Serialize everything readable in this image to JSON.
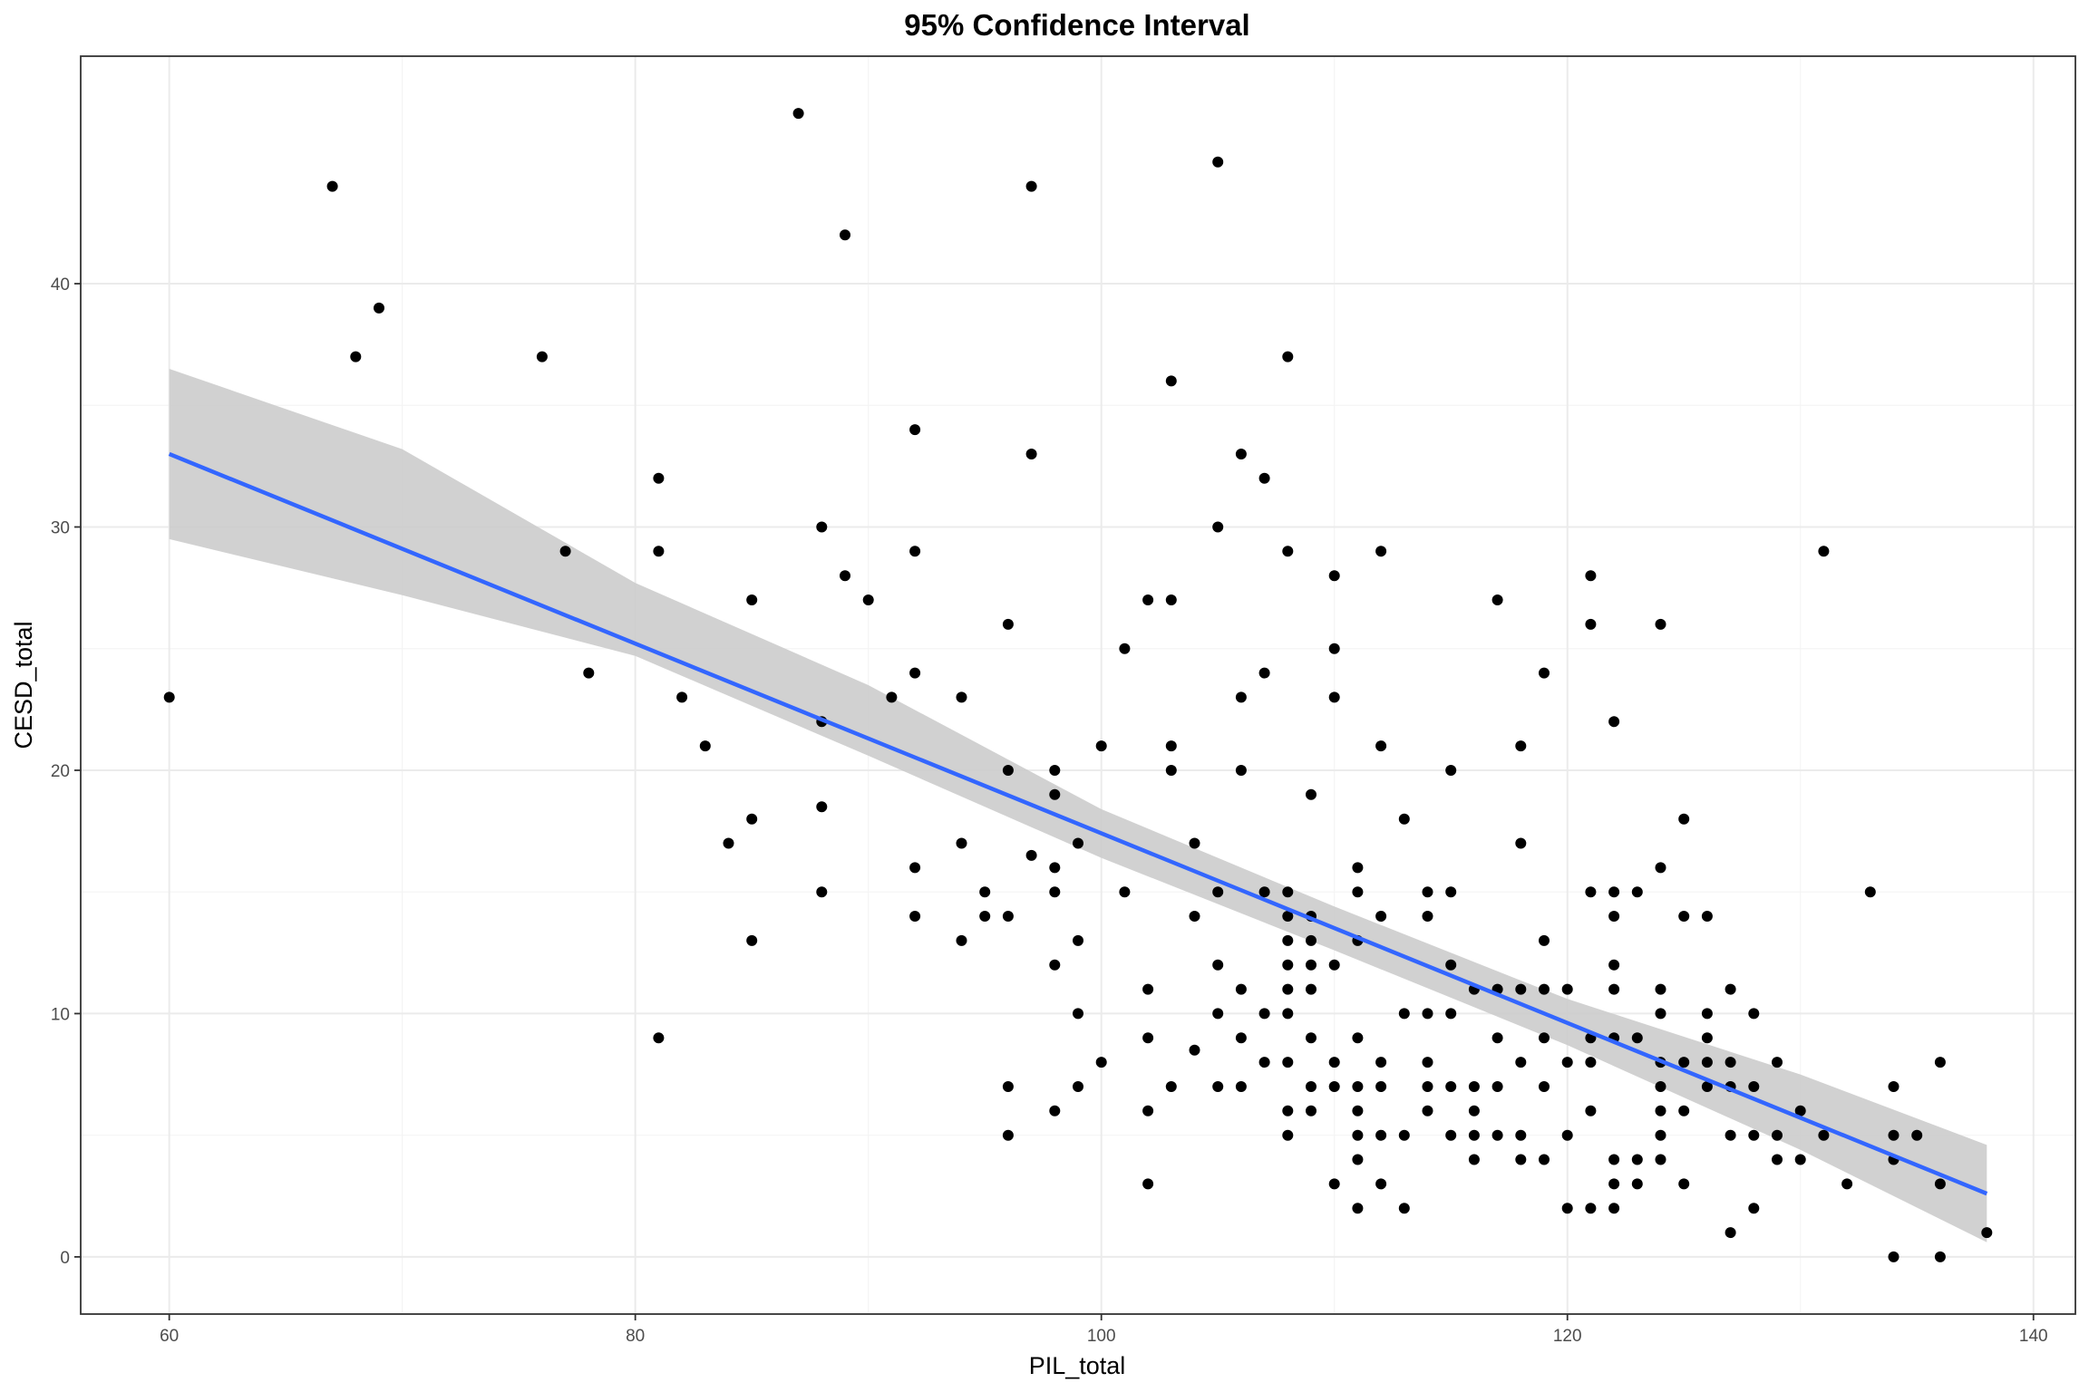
{
  "chart_data": {
    "type": "scatter",
    "title": "95% Confidence Interval",
    "xlabel": "PIL_total",
    "ylabel": "CESD_total",
    "xlim": [
      56.2,
      141.8
    ],
    "ylim": [
      -2.35,
      49.35
    ],
    "x_ticks": [
      60,
      80,
      100,
      120,
      140
    ],
    "y_ticks": [
      0,
      10,
      20,
      30,
      40
    ],
    "grid": true,
    "colors": {
      "points": "#000000",
      "line": "#3366ff",
      "ribbon": "#cccccc",
      "panel_border": "#333333"
    },
    "points": [
      [
        60,
        23
      ],
      [
        67,
        44
      ],
      [
        68,
        37
      ],
      [
        69,
        39
      ],
      [
        76,
        37
      ],
      [
        77,
        29
      ],
      [
        78,
        24
      ],
      [
        81,
        32
      ],
      [
        81,
        29
      ],
      [
        81,
        9
      ],
      [
        82,
        23
      ],
      [
        83,
        21
      ],
      [
        84,
        17
      ],
      [
        85,
        27
      ],
      [
        85,
        18
      ],
      [
        85,
        13
      ],
      [
        87,
        47
      ],
      [
        88,
        30
      ],
      [
        88,
        22
      ],
      [
        88,
        18.5
      ],
      [
        88,
        15
      ],
      [
        89,
        42
      ],
      [
        89,
        28
      ],
      [
        90,
        27
      ],
      [
        91,
        23
      ],
      [
        92,
        34
      ],
      [
        92,
        29
      ],
      [
        92,
        24
      ],
      [
        92,
        16
      ],
      [
        92,
        14
      ],
      [
        94,
        23
      ],
      [
        94,
        17
      ],
      [
        94,
        13
      ],
      [
        95,
        15
      ],
      [
        95,
        14
      ],
      [
        96,
        26
      ],
      [
        96,
        20
      ],
      [
        96,
        14
      ],
      [
        96,
        7
      ],
      [
        96,
        5
      ],
      [
        97,
        44
      ],
      [
        97,
        33
      ],
      [
        97,
        16.5
      ],
      [
        98,
        20
      ],
      [
        98,
        19
      ],
      [
        98,
        16
      ],
      [
        98,
        15
      ],
      [
        98,
        12
      ],
      [
        98,
        6
      ],
      [
        99,
        17
      ],
      [
        99,
        13
      ],
      [
        99,
        10
      ],
      [
        99,
        7
      ],
      [
        100,
        21
      ],
      [
        100,
        8
      ],
      [
        101,
        25
      ],
      [
        101,
        15
      ],
      [
        102,
        27
      ],
      [
        102,
        11
      ],
      [
        102,
        9
      ],
      [
        102,
        6
      ],
      [
        102,
        3
      ],
      [
        103,
        36
      ],
      [
        103,
        27
      ],
      [
        103,
        21
      ],
      [
        103,
        20
      ],
      [
        103,
        7
      ],
      [
        104,
        17
      ],
      [
        104,
        14
      ],
      [
        104,
        8.5
      ],
      [
        105,
        45
      ],
      [
        105,
        30
      ],
      [
        105,
        15
      ],
      [
        105,
        12
      ],
      [
        105,
        10
      ],
      [
        105,
        7
      ],
      [
        106,
        33
      ],
      [
        106,
        23
      ],
      [
        106,
        20
      ],
      [
        106,
        11
      ],
      [
        106,
        9
      ],
      [
        106,
        7
      ],
      [
        107,
        32
      ],
      [
        107,
        24
      ],
      [
        107,
        15
      ],
      [
        107,
        10
      ],
      [
        107,
        8
      ],
      [
        108,
        37
      ],
      [
        108,
        29
      ],
      [
        108,
        15
      ],
      [
        108,
        14
      ],
      [
        108,
        13
      ],
      [
        108,
        12
      ],
      [
        108,
        11
      ],
      [
        108,
        10
      ],
      [
        108,
        8
      ],
      [
        108,
        6
      ],
      [
        108,
        5
      ],
      [
        109,
        19
      ],
      [
        109,
        14
      ],
      [
        109,
        13
      ],
      [
        109,
        12
      ],
      [
        109,
        11
      ],
      [
        109,
        9
      ],
      [
        109,
        7
      ],
      [
        109,
        6
      ],
      [
        110,
        28
      ],
      [
        110,
        25
      ],
      [
        110,
        23
      ],
      [
        110,
        12
      ],
      [
        110,
        8
      ],
      [
        110,
        7
      ],
      [
        110,
        3
      ],
      [
        111,
        16
      ],
      [
        111,
        15
      ],
      [
        111,
        13
      ],
      [
        111,
        9
      ],
      [
        111,
        7
      ],
      [
        111,
        6
      ],
      [
        111,
        5
      ],
      [
        111,
        4
      ],
      [
        111,
        2
      ],
      [
        112,
        29
      ],
      [
        112,
        21
      ],
      [
        112,
        14
      ],
      [
        112,
        8
      ],
      [
        112,
        7
      ],
      [
        112,
        5
      ],
      [
        112,
        3
      ],
      [
        113,
        18
      ],
      [
        113,
        10
      ],
      [
        113,
        5
      ],
      [
        113,
        2
      ],
      [
        114,
        15
      ],
      [
        114,
        14
      ],
      [
        114,
        10
      ],
      [
        114,
        8
      ],
      [
        114,
        7
      ],
      [
        114,
        6
      ],
      [
        115,
        20
      ],
      [
        115,
        15
      ],
      [
        115,
        12
      ],
      [
        115,
        10
      ],
      [
        115,
        7
      ],
      [
        115,
        5
      ],
      [
        116,
        11
      ],
      [
        116,
        7
      ],
      [
        116,
        6
      ],
      [
        116,
        5
      ],
      [
        116,
        4
      ],
      [
        117,
        27
      ],
      [
        117,
        11
      ],
      [
        117,
        9
      ],
      [
        117,
        7
      ],
      [
        117,
        5
      ],
      [
        118,
        21
      ],
      [
        118,
        17
      ],
      [
        118,
        11
      ],
      [
        118,
        8
      ],
      [
        118,
        5
      ],
      [
        118,
        4
      ],
      [
        119,
        24
      ],
      [
        119,
        13
      ],
      [
        119,
        11
      ],
      [
        119,
        9
      ],
      [
        119,
        7
      ],
      [
        119,
        4
      ],
      [
        120,
        11
      ],
      [
        120,
        8
      ],
      [
        120,
        5
      ],
      [
        120,
        2
      ],
      [
        121,
        28
      ],
      [
        121,
        26
      ],
      [
        121,
        15
      ],
      [
        121,
        9
      ],
      [
        121,
        8
      ],
      [
        121,
        6
      ],
      [
        121,
        2
      ],
      [
        122,
        22
      ],
      [
        122,
        15
      ],
      [
        122,
        14
      ],
      [
        122,
        12
      ],
      [
        122,
        11
      ],
      [
        122,
        9
      ],
      [
        122,
        4
      ],
      [
        122,
        3
      ],
      [
        122,
        2
      ],
      [
        123,
        15
      ],
      [
        123,
        9
      ],
      [
        123,
        4
      ],
      [
        123,
        3
      ],
      [
        124,
        26
      ],
      [
        124,
        16
      ],
      [
        124,
        11
      ],
      [
        124,
        10
      ],
      [
        124,
        8
      ],
      [
        124,
        7
      ],
      [
        124,
        6
      ],
      [
        124,
        5
      ],
      [
        124,
        4
      ],
      [
        125,
        18
      ],
      [
        125,
        14
      ],
      [
        125,
        8
      ],
      [
        125,
        6
      ],
      [
        125,
        3
      ],
      [
        126,
        14
      ],
      [
        126,
        10
      ],
      [
        126,
        9
      ],
      [
        126,
        8
      ],
      [
        126,
        7
      ],
      [
        127,
        11
      ],
      [
        127,
        8
      ],
      [
        127,
        7
      ],
      [
        127,
        5
      ],
      [
        127,
        1
      ],
      [
        128,
        10
      ],
      [
        128,
        7
      ],
      [
        128,
        5
      ],
      [
        128,
        2
      ],
      [
        129,
        8
      ],
      [
        129,
        5
      ],
      [
        129,
        4
      ],
      [
        130,
        6
      ],
      [
        130,
        4
      ],
      [
        131,
        29
      ],
      [
        131,
        5
      ],
      [
        132,
        3
      ],
      [
        133,
        15
      ],
      [
        134,
        7
      ],
      [
        134,
        5
      ],
      [
        134,
        4
      ],
      [
        134,
        0
      ],
      [
        135,
        5
      ],
      [
        136,
        8
      ],
      [
        136,
        3
      ],
      [
        136,
        0
      ],
      [
        138,
        1
      ]
    ],
    "fit_line": {
      "x": [
        60,
        138
      ],
      "y": [
        33.0,
        2.6
      ]
    },
    "confidence_band": {
      "x": [
        60,
        70,
        80,
        90,
        100,
        110,
        120,
        130,
        138
      ],
      "lower": [
        29.5,
        27.2,
        24.7,
        20.6,
        16.4,
        12.6,
        8.7,
        4.4,
        0.6
      ],
      "upper": [
        36.5,
        33.2,
        27.7,
        23.5,
        18.4,
        14.4,
        10.6,
        7.5,
        4.6
      ]
    }
  }
}
